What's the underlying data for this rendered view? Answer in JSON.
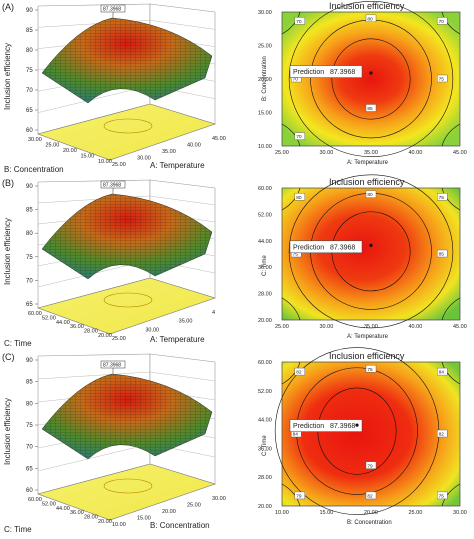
{
  "panels": [
    {
      "label": "(A)",
      "surface": {
        "z_label": "Inclusion efficiency",
        "z_ticks": [
          "90",
          "85",
          "80",
          "75",
          "70",
          "65",
          "60"
        ],
        "back_ticks": [
          "30.00",
          "25.00",
          "20.00",
          "15.00",
          "10.00"
        ],
        "back_title": "B: Concentration",
        "right_ticks": [
          "25.00",
          "30.00",
          "35.00",
          "40.00",
          "45.00"
        ],
        "right_title": "A: Temperature",
        "peak_flag": "87.3968"
      },
      "contour": {
        "title": "Inclusion efficiency",
        "y_title": "B: Concentration",
        "x_title": "A: Temperature",
        "y_ticks": [
          "30.00",
          "25.00",
          "20.00",
          "15.00",
          "10.00"
        ],
        "x_ticks": [
          "25.00",
          "30.00",
          "35.00",
          "40.00",
          "45.00"
        ],
        "prediction_label": "Prediction",
        "prediction_value": "87.3968",
        "contour_labels": [
          "70",
          "80",
          "70",
          "70",
          "75",
          "85",
          "70"
        ]
      }
    },
    {
      "label": "(B)",
      "surface": {
        "z_label": "Inclusion efficiency",
        "z_ticks": [
          "90",
          "85",
          "80",
          "75",
          "70",
          "65"
        ],
        "back_ticks": [
          "60.00",
          "52.00",
          "44.00",
          "36.00",
          "28.00",
          "20.00"
        ],
        "back_title": "C: Time",
        "right_ticks": [
          "25.00",
          "30.00",
          "35.00",
          "4"
        ],
        "right_title": "A: Temperature",
        "peak_flag": "87.3968"
      },
      "contour": {
        "title": "Inclusion efficiency",
        "y_title": "C: Time",
        "x_title": "A: Temperature",
        "y_ticks": [
          "60.00",
          "52.00",
          "44.00",
          "36.00",
          "28.00",
          "20.00"
        ],
        "x_ticks": [
          "25.00",
          "30.00",
          "35.00",
          "40.00",
          "45.00"
        ],
        "prediction_label": "Prediction",
        "prediction_value": "87.3968",
        "contour_labels": [
          "80",
          "80",
          "75",
          "75",
          "85"
        ]
      }
    },
    {
      "label": "(C)",
      "surface": {
        "z_label": "Inclusion efficiency",
        "z_ticks": [
          "90",
          "85",
          "80",
          "75",
          "70",
          "65",
          "60"
        ],
        "back_ticks": [
          "60.00",
          "52.00",
          "44.00",
          "36.00",
          "28.00",
          "20.00"
        ],
        "back_title": "C: Time",
        "right_ticks": [
          "10.00",
          "15.00",
          "20.00",
          "25.00",
          "30.00"
        ],
        "right_title": "B: Concentration",
        "peak_flag": "87.3968"
      },
      "contour": {
        "title": "Inclusion efficiency",
        "y_title": "C: Time",
        "x_title": "B: Concentration",
        "y_ticks": [
          "60.00",
          "52.00",
          "44.00",
          "36.00",
          "28.00",
          "20.00"
        ],
        "x_ticks": [
          "10.00",
          "15.00",
          "20.00",
          "25.00",
          "30.00"
        ],
        "prediction_label": "Prediction",
        "prediction_value": "87.3968",
        "contour_labels": [
          "82",
          "75",
          "84",
          "84",
          "82",
          "79",
          "79",
          "75",
          "82"
        ]
      }
    }
  ],
  "chart_data": [
    {
      "type": "surface",
      "panel": "(A)",
      "title": "",
      "x_label": "A: Temperature",
      "y_label": "B: Concentration",
      "z_label": "Inclusion efficiency",
      "x_range": [
        25,
        45
      ],
      "y_range": [
        10,
        30
      ],
      "z_range": [
        60,
        90
      ],
      "z_max": 87.3968
    },
    {
      "type": "contour",
      "panel": "(A)",
      "title": "Inclusion efficiency",
      "x_label": "A: Temperature",
      "y_label": "B: Concentration",
      "x_range": [
        25,
        45
      ],
      "y_range": [
        10,
        30
      ],
      "prediction": {
        "x": 35,
        "y": 20,
        "value": 87.3968
      },
      "contour_levels": [
        70,
        75,
        80,
        85
      ]
    },
    {
      "type": "surface",
      "panel": "(B)",
      "title": "",
      "x_label": "A: Temperature",
      "y_label": "C: Time",
      "z_label": "Inclusion efficiency",
      "x_range": [
        25,
        45
      ],
      "y_range": [
        20,
        60
      ],
      "z_range": [
        65,
        90
      ],
      "z_max": 87.3968
    },
    {
      "type": "contour",
      "panel": "(B)",
      "title": "Inclusion efficiency",
      "x_label": "A: Temperature",
      "y_label": "C: Time",
      "x_range": [
        25,
        45
      ],
      "y_range": [
        20,
        60
      ],
      "prediction": {
        "x": 35,
        "y": 40,
        "value": 87.3968
      },
      "contour_levels": [
        75,
        80,
        85
      ]
    },
    {
      "type": "surface",
      "panel": "(C)",
      "title": "",
      "x_label": "B: Concentration",
      "y_label": "C: Time",
      "z_label": "Inclusion efficiency",
      "x_range": [
        10,
        30
      ],
      "y_range": [
        20,
        60
      ],
      "z_range": [
        60,
        90
      ],
      "z_max": 87.3968
    },
    {
      "type": "contour",
      "panel": "(C)",
      "title": "Inclusion efficiency",
      "x_label": "B: Concentration",
      "y_label": "C: Time",
      "x_range": [
        10,
        30
      ],
      "y_range": [
        20,
        60
      ],
      "prediction": {
        "x": 20,
        "y": 40,
        "value": 87.3968
      },
      "contour_levels": [
        75,
        79,
        82,
        84
      ]
    }
  ]
}
